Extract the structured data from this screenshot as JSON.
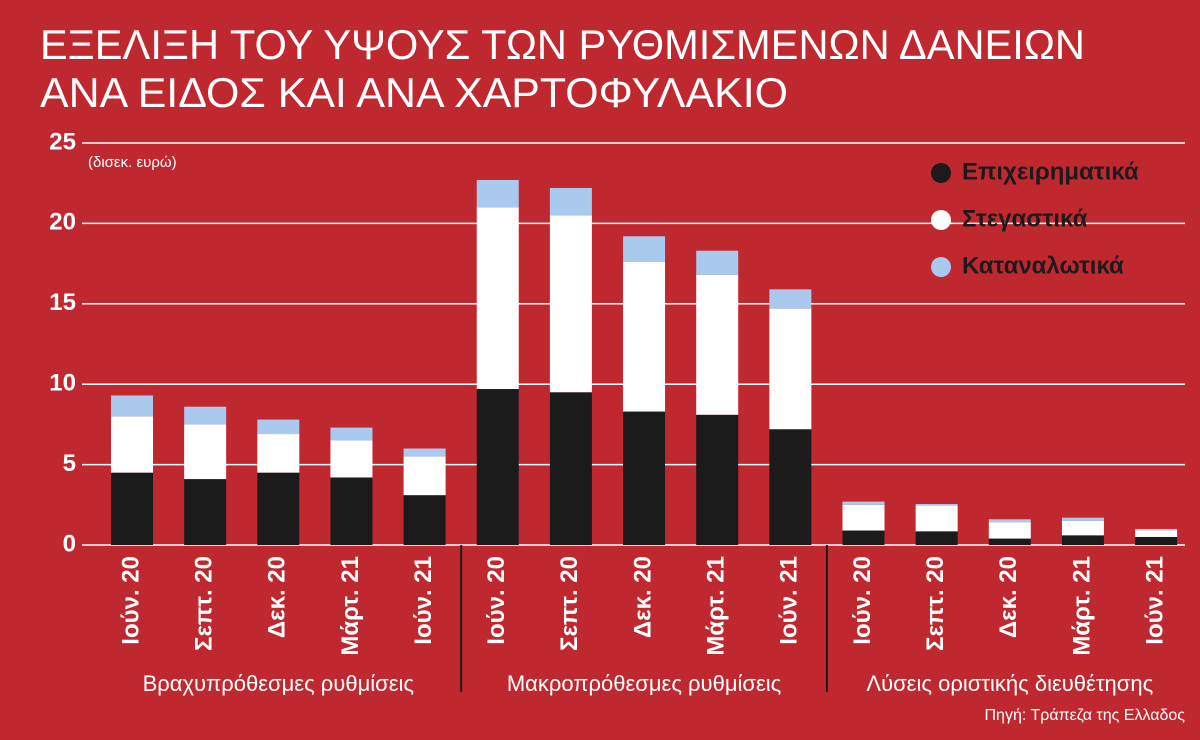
{
  "chart_data": {
    "type": "stacked_bar",
    "title_lines": [
      "ΕΞΕΛΙΞΗ ΤΟΥ ΥΨΟΥΣ ΤΩΝ ΡΥΘΜΙΣΜΕΝΩΝ ΔΑΝΕΙΩΝ",
      "ΑΝΑ ΕΙΔΟΣ ΚΑΙ ΑΝΑ ΧΑΡΤΟΦΥΛΑΚΙΟ"
    ],
    "y_label": "(δισεκ. ευρώ)",
    "source": "Πηγή: Τράπεζα της Ελλαδος",
    "categories": [
      "Ιούν. 20",
      "Σεπτ. 20",
      "Δεκ. 20",
      "Μάρτ. 21",
      "Ιούν. 21",
      "Ιούν. 20",
      "Σεπτ. 20",
      "Δεκ. 20",
      "Μάρτ. 21",
      "Ιούν. 21",
      "Ιούν. 20",
      "Σεπτ. 20",
      "Δεκ. 20",
      "Μάρτ. 21",
      "Ιούν. 21"
    ],
    "group_labels": [
      "Βραχυπρόθεσμες ρυθμίσεις",
      "Μακροπρόθεσμες ρυθμίσεις",
      "Λύσεις οριστικής διευθέτησης"
    ],
    "series": [
      {
        "name": "Επιχειρηματικά",
        "color": "#1b1b1b",
        "values": [
          4.5,
          4.1,
          4.5,
          4.2,
          3.1,
          9.7,
          9.5,
          8.3,
          8.1,
          7.2,
          0.9,
          0.85,
          0.4,
          0.6,
          0.5
        ]
      },
      {
        "name": "Στεγαστικά",
        "color": "#ffffff",
        "values": [
          3.5,
          3.4,
          2.4,
          2.3,
          2.4,
          11.3,
          11.0,
          9.3,
          8.7,
          7.5,
          1.6,
          1.6,
          1.0,
          0.9,
          0.4
        ]
      },
      {
        "name": "Καταναλωτικά",
        "color": "#a9c9ee",
        "values": [
          1.3,
          1.1,
          0.9,
          0.8,
          0.5,
          1.7,
          1.7,
          1.6,
          1.5,
          1.2,
          0.2,
          0.1,
          0.2,
          0.2,
          0.1
        ]
      }
    ],
    "ylim": [
      0,
      25
    ],
    "yticks": [
      0,
      5,
      10,
      15,
      20,
      25
    ],
    "grid": true,
    "legend": "top-right"
  }
}
